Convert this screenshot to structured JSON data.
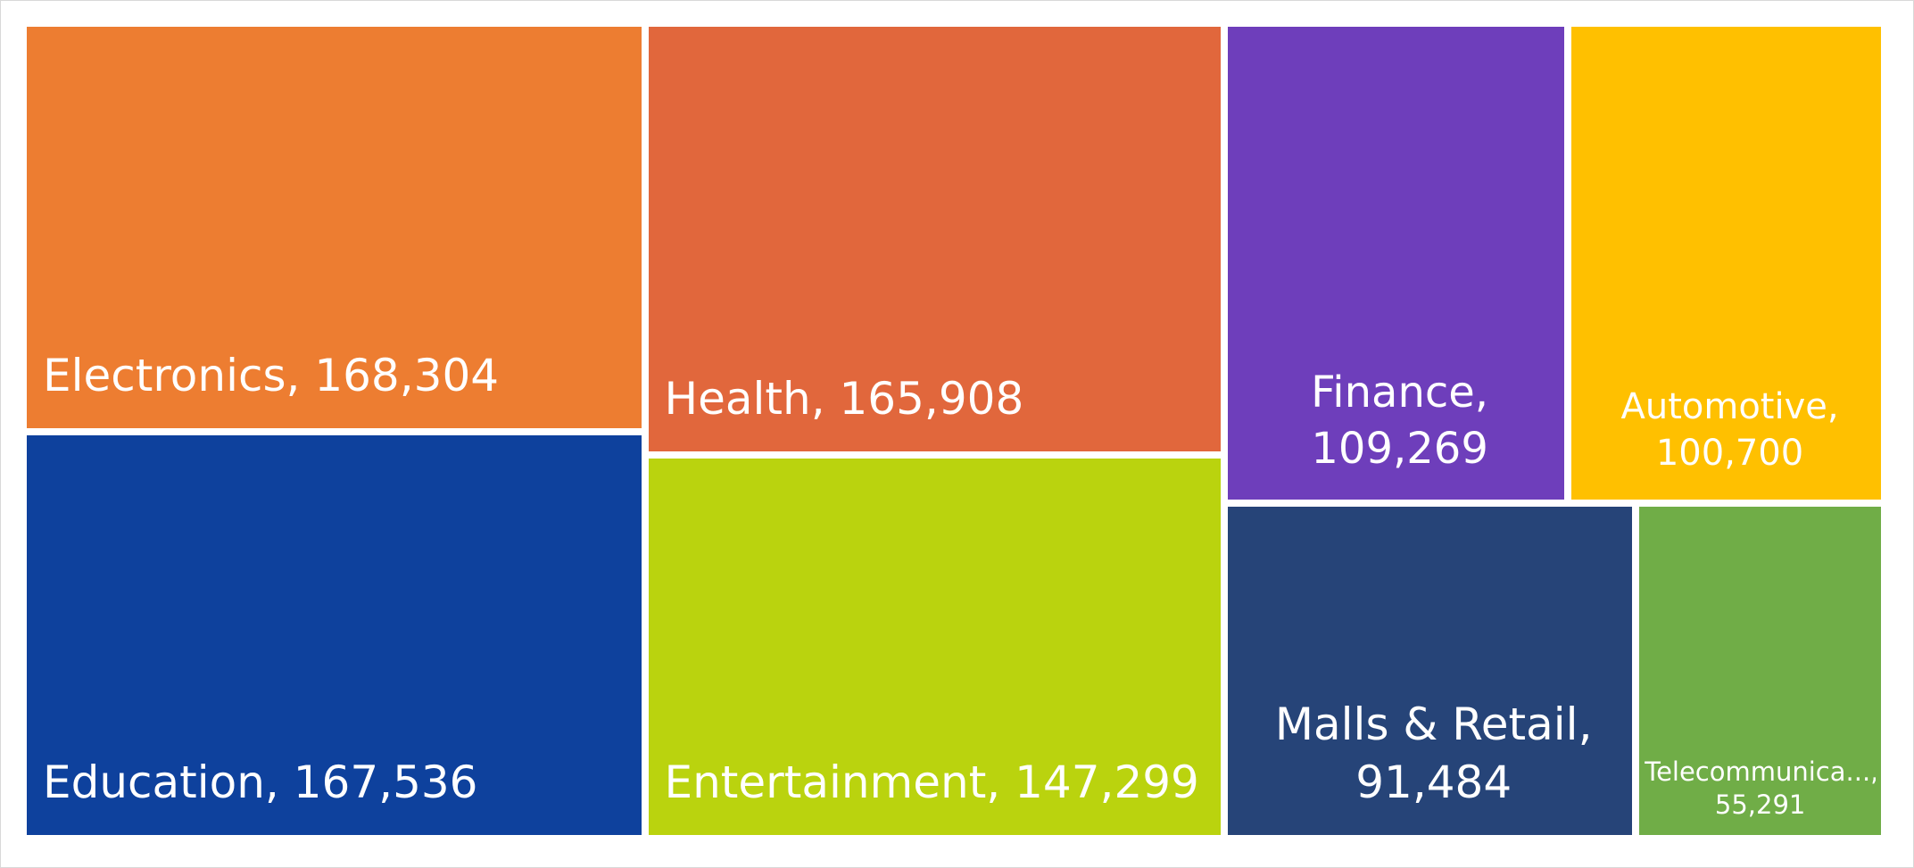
{
  "chart_data": {
    "type": "treemap",
    "title": "",
    "items": [
      {
        "name": "Electronics",
        "value": 168304,
        "value_label": "168,304",
        "color": "#ED7D31"
      },
      {
        "name": "Education",
        "value": 167536,
        "value_label": "167,536",
        "color": "#0E419D"
      },
      {
        "name": "Health",
        "value": 165908,
        "value_label": "165,908",
        "color": "#E1673C"
      },
      {
        "name": "Entertainment",
        "value": 147299,
        "value_label": "147,299",
        "color": "#BAD30E"
      },
      {
        "name": "Finance",
        "value": 109269,
        "value_label": "109,269",
        "color": "#6E3EBB"
      },
      {
        "name": "Automotive",
        "value": 100700,
        "value_label": "100,700",
        "color": "#FFC000"
      },
      {
        "name": "Malls & Retail",
        "value": 91484,
        "value_label": "91,484",
        "color": "#264478"
      },
      {
        "name": "Telecommunica...",
        "value": 55291,
        "value_label": "55,291",
        "color": "#70AD47"
      }
    ]
  }
}
